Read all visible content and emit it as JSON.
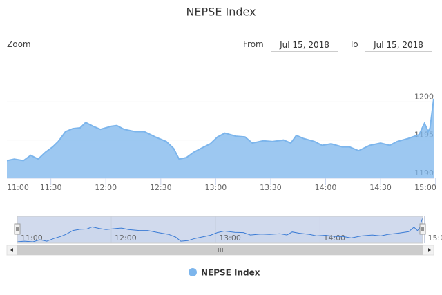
{
  "chart_data": {
    "type": "area",
    "title": "NEPSE Index",
    "range_selector": {
      "zoom_label": "Zoom",
      "from_label": "From",
      "from": "Jul 15, 2018",
      "to_label": "To",
      "to": "Jul 15, 2018"
    },
    "x": [
      666,
      670,
      675,
      679,
      683,
      687,
      691,
      694,
      698,
      702,
      706,
      709,
      713,
      717,
      723,
      726,
      730,
      736,
      741,
      747,
      753,
      757,
      760,
      764,
      768,
      772,
      777,
      781,
      785,
      791,
      796,
      800,
      806,
      811,
      817,
      821,
      824,
      828,
      834,
      838,
      843,
      849,
      853,
      858,
      864,
      870,
      875,
      879,
      885,
      891,
      894,
      896,
      897,
      899
    ],
    "series": [
      {
        "name": "NEPSE Index",
        "color": "#7cb5ec",
        "values": [
          1192.3,
          1192.5,
          1192.3,
          1193.0,
          1192.5,
          1193.4,
          1194.1,
          1194.8,
          1196.1,
          1196.5,
          1196.6,
          1197.3,
          1196.8,
          1196.4,
          1196.8,
          1196.9,
          1196.4,
          1196.1,
          1196.1,
          1195.4,
          1194.8,
          1193.9,
          1192.5,
          1192.7,
          1193.4,
          1193.9,
          1194.5,
          1195.4,
          1195.9,
          1195.5,
          1195.4,
          1194.6,
          1194.9,
          1194.8,
          1195.0,
          1194.6,
          1195.6,
          1195.2,
          1194.8,
          1194.3,
          1194.5,
          1194.1,
          1194.1,
          1193.6,
          1194.3,
          1194.6,
          1194.3,
          1194.8,
          1195.2,
          1195.7,
          1197.2,
          1196.1,
          1196.6,
          1200.4
        ]
      }
    ],
    "xlim": [
      666,
      899
    ],
    "xticks": [
      {
        "value": 660,
        "label": "11:00"
      },
      {
        "value": 690,
        "label": "11:30"
      },
      {
        "value": 720,
        "label": "12:00"
      },
      {
        "value": 750,
        "label": "12:30"
      },
      {
        "value": 780,
        "label": "13:00"
      },
      {
        "value": 810,
        "label": "13:30"
      },
      {
        "value": 840,
        "label": "14:00"
      },
      {
        "value": 870,
        "label": "14:30"
      },
      {
        "value": 900,
        "label": "15:00"
      }
    ],
    "ylim": [
      1190,
      1205
    ],
    "yticks": [
      1190,
      1195,
      1200
    ],
    "grid": true,
    "navigator": true,
    "legend": "bottom"
  }
}
